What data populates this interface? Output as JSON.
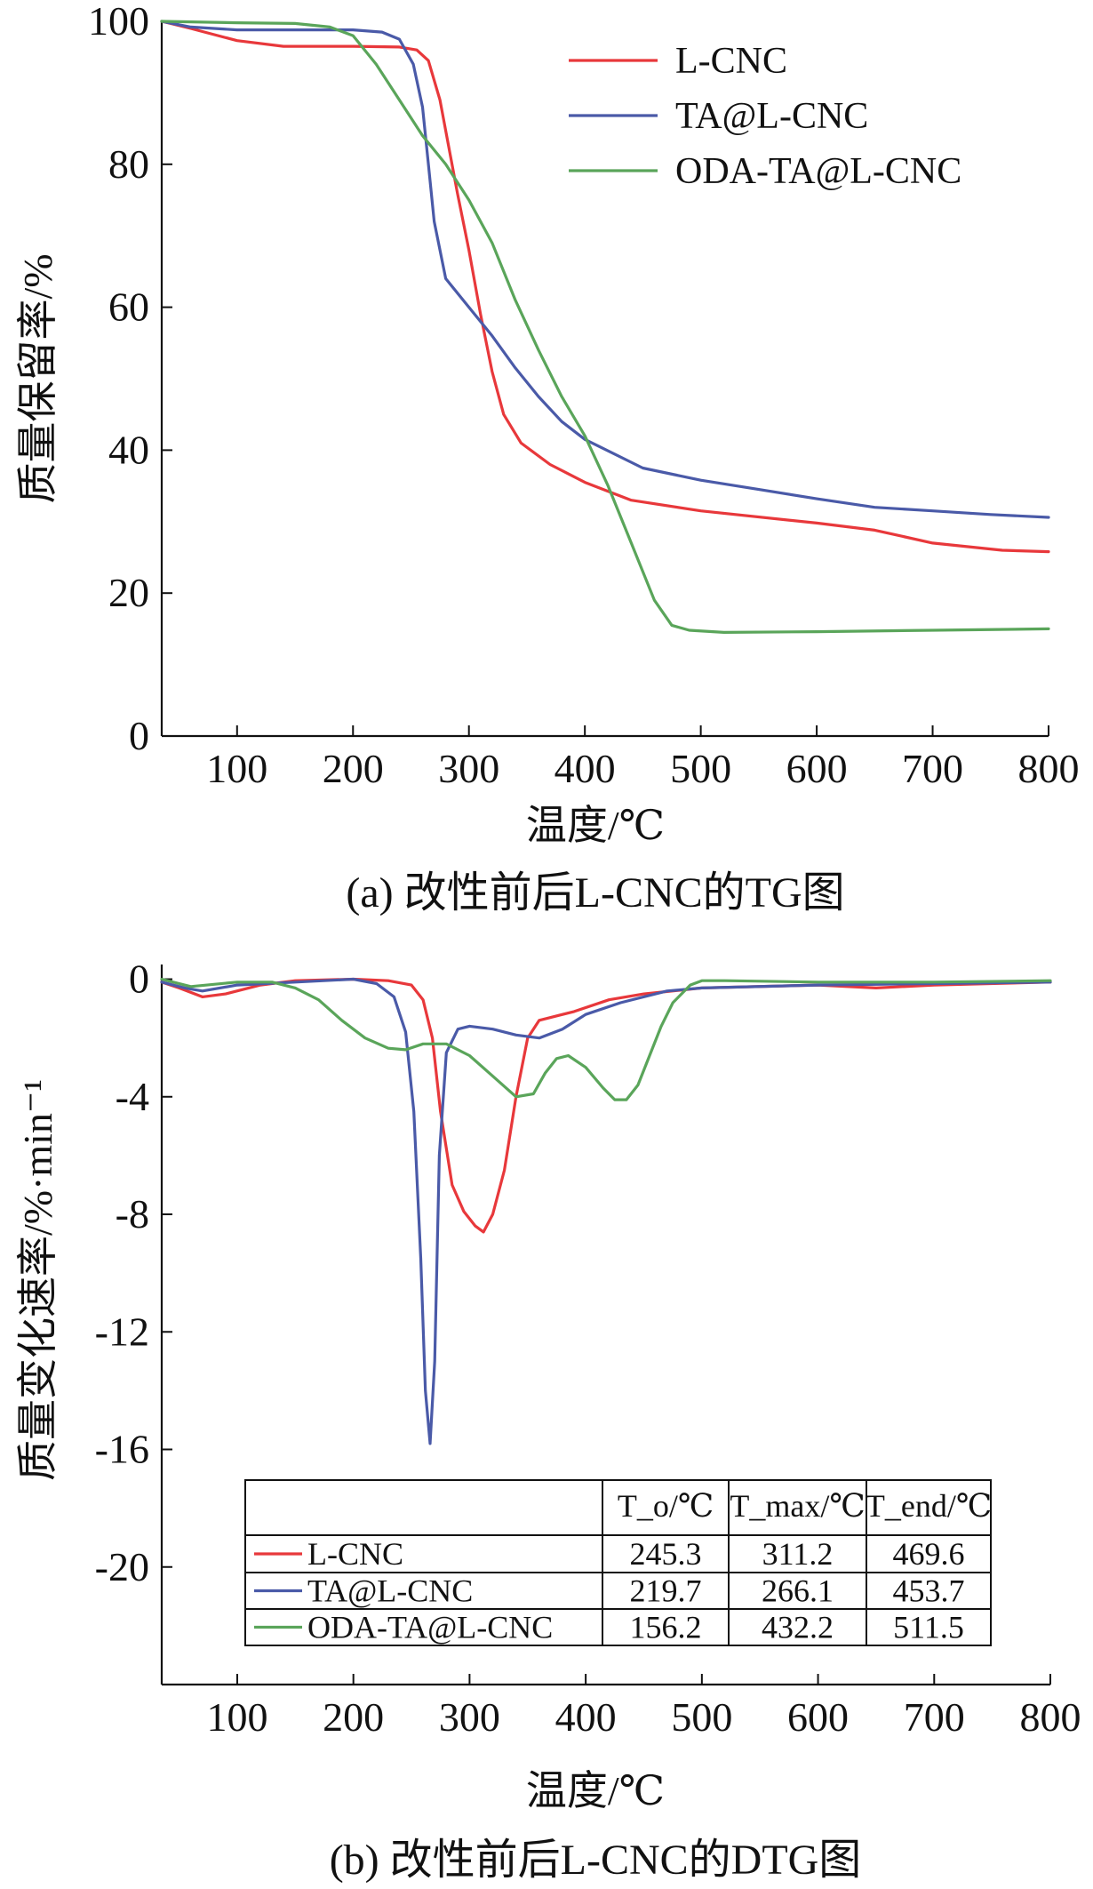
{
  "colors": {
    "L-CNC": "#e8383b",
    "TA@L-CNC": "#4a5aa8",
    "ODA-TA@L-CNC": "#5aa55a"
  },
  "chart_data": [
    {
      "id": "tg",
      "type": "line",
      "caption": "(a) 改性前后L-CNC的TG图",
      "xlabel": "温度/℃",
      "ylabel": "质量保留率/%",
      "xlim": [
        35,
        800
      ],
      "ylim": [
        0,
        100
      ],
      "xticks": [
        100,
        200,
        300,
        400,
        500,
        600,
        700,
        800
      ],
      "yticks": [
        0,
        20,
        40,
        60,
        80,
        100
      ],
      "legend": {
        "placement": "top-right",
        "entries": [
          "L-CNC",
          "TA@L-CNC",
          "ODA-TA@L-CNC"
        ]
      },
      "series": [
        {
          "name": "L-CNC",
          "points": [
            [
              35,
              100
            ],
            [
              60,
              99
            ],
            [
              100,
              97.3
            ],
            [
              140,
              96.5
            ],
            [
              200,
              96.5
            ],
            [
              240,
              96.4
            ],
            [
              255,
              96
            ],
            [
              265,
              94.5
            ],
            [
              275,
              89
            ],
            [
              290,
              76
            ],
            [
              300,
              68
            ],
            [
              310,
              59
            ],
            [
              320,
              51
            ],
            [
              330,
              45
            ],
            [
              345,
              41
            ],
            [
              370,
              38
            ],
            [
              400,
              35.5
            ],
            [
              440,
              33
            ],
            [
              500,
              31.5
            ],
            [
              600,
              29.8
            ],
            [
              650,
              28.8
            ],
            [
              700,
              27
            ],
            [
              760,
              26
            ],
            [
              800,
              25.8
            ]
          ]
        },
        {
          "name": "TA@L-CNC",
          "points": [
            [
              35,
              100
            ],
            [
              60,
              99.2
            ],
            [
              100,
              98.8
            ],
            [
              200,
              98.8
            ],
            [
              225,
              98.5
            ],
            [
              240,
              97.5
            ],
            [
              252,
              94
            ],
            [
              260,
              88
            ],
            [
              265,
              80
            ],
            [
              270,
              72
            ],
            [
              280,
              64
            ],
            [
              300,
              60
            ],
            [
              320,
              56
            ],
            [
              340,
              51.5
            ],
            [
              360,
              47.5
            ],
            [
              380,
              44
            ],
            [
              400,
              41.5
            ],
            [
              450,
              37.5
            ],
            [
              500,
              35.8
            ],
            [
              550,
              34.5
            ],
            [
              600,
              33.2
            ],
            [
              650,
              32
            ],
            [
              700,
              31.5
            ],
            [
              750,
              31
            ],
            [
              800,
              30.6
            ]
          ]
        },
        {
          "name": "ODA-TA@L-CNC",
          "points": [
            [
              35,
              100
            ],
            [
              100,
              99.8
            ],
            [
              150,
              99.7
            ],
            [
              180,
              99.2
            ],
            [
              200,
              98
            ],
            [
              220,
              94
            ],
            [
              240,
              89
            ],
            [
              260,
              84
            ],
            [
              280,
              80
            ],
            [
              300,
              75
            ],
            [
              320,
              69
            ],
            [
              340,
              61
            ],
            [
              360,
              54
            ],
            [
              380,
              47.5
            ],
            [
              400,
              42
            ],
            [
              420,
              35
            ],
            [
              440,
              27
            ],
            [
              460,
              19
            ],
            [
              475,
              15.5
            ],
            [
              490,
              14.8
            ],
            [
              520,
              14.5
            ],
            [
              600,
              14.6
            ],
            [
              700,
              14.8
            ],
            [
              800,
              15
            ]
          ]
        }
      ]
    },
    {
      "id": "dtg",
      "type": "line",
      "caption": "(b) 改性前后L-CNC的DTG图",
      "xlabel": "温度/℃",
      "ylabel": "质量变化速率/%·min⁻¹",
      "xlim": [
        35,
        800
      ],
      "ylim": [
        -24,
        0.5
      ],
      "xticks": [
        100,
        200,
        300,
        400,
        500,
        600,
        700,
        800
      ],
      "yticks": [
        0,
        -4,
        -8,
        -12,
        -16,
        -20
      ],
      "yticklabels": [
        "0",
        "-4",
        "-8",
        "-12",
        "-16",
        "-20"
      ],
      "series": [
        {
          "name": "L-CNC",
          "points": [
            [
              35,
              -0.1
            ],
            [
              50,
              -0.3
            ],
            [
              70,
              -0.6
            ],
            [
              90,
              -0.5
            ],
            [
              120,
              -0.2
            ],
            [
              150,
              -0.05
            ],
            [
              200,
              0
            ],
            [
              230,
              -0.05
            ],
            [
              250,
              -0.2
            ],
            [
              260,
              -0.7
            ],
            [
              268,
              -2
            ],
            [
              275,
              -4.5
            ],
            [
              285,
              -7
            ],
            [
              295,
              -7.9
            ],
            [
              305,
              -8.4
            ],
            [
              312,
              -8.6
            ],
            [
              320,
              -8
            ],
            [
              330,
              -6.5
            ],
            [
              340,
              -4
            ],
            [
              350,
              -2
            ],
            [
              360,
              -1.4
            ],
            [
              390,
              -1.1
            ],
            [
              420,
              -0.7
            ],
            [
              450,
              -0.5
            ],
            [
              500,
              -0.3
            ],
            [
              600,
              -0.2
            ],
            [
              650,
              -0.3
            ],
            [
              700,
              -0.2
            ],
            [
              800,
              -0.1
            ]
          ]
        },
        {
          "name": "TA@L-CNC",
          "points": [
            [
              35,
              -0.1
            ],
            [
              55,
              -0.3
            ],
            [
              70,
              -0.4
            ],
            [
              100,
              -0.2
            ],
            [
              150,
              -0.1
            ],
            [
              200,
              0
            ],
            [
              220,
              -0.15
            ],
            [
              235,
              -0.6
            ],
            [
              245,
              -1.8
            ],
            [
              252,
              -4.5
            ],
            [
              258,
              -9.5
            ],
            [
              262,
              -14
            ],
            [
              266,
              -15.8
            ],
            [
              270,
              -13
            ],
            [
              274,
              -6
            ],
            [
              280,
              -2.5
            ],
            [
              290,
              -1.7
            ],
            [
              300,
              -1.6
            ],
            [
              320,
              -1.7
            ],
            [
              340,
              -1.9
            ],
            [
              360,
              -2
            ],
            [
              380,
              -1.7
            ],
            [
              400,
              -1.2
            ],
            [
              430,
              -0.8
            ],
            [
              470,
              -0.4
            ],
            [
              500,
              -0.3
            ],
            [
              600,
              -0.2
            ],
            [
              700,
              -0.15
            ],
            [
              800,
              -0.1
            ]
          ]
        },
        {
          "name": "ODA-TA@L-CNC",
          "points": [
            [
              35,
              0
            ],
            [
              60,
              -0.25
            ],
            [
              100,
              -0.1
            ],
            [
              130,
              -0.1
            ],
            [
              150,
              -0.3
            ],
            [
              170,
              -0.7
            ],
            [
              190,
              -1.4
            ],
            [
              210,
              -2
            ],
            [
              230,
              -2.35
            ],
            [
              245,
              -2.4
            ],
            [
              260,
              -2.2
            ],
            [
              280,
              -2.2
            ],
            [
              300,
              -2.6
            ],
            [
              320,
              -3.3
            ],
            [
              340,
              -4
            ],
            [
              355,
              -3.9
            ],
            [
              365,
              -3.2
            ],
            [
              375,
              -2.7
            ],
            [
              385,
              -2.6
            ],
            [
              400,
              -3
            ],
            [
              415,
              -3.7
            ],
            [
              425,
              -4.1
            ],
            [
              435,
              -4.1
            ],
            [
              445,
              -3.6
            ],
            [
              455,
              -2.6
            ],
            [
              465,
              -1.6
            ],
            [
              475,
              -0.8
            ],
            [
              490,
              -0.2
            ],
            [
              500,
              -0.05
            ],
            [
              520,
              -0.05
            ],
            [
              600,
              -0.1
            ],
            [
              700,
              -0.1
            ],
            [
              800,
              -0.05
            ]
          ]
        }
      ],
      "table": {
        "headers": [
          "T_o/℃",
          "T_max/℃",
          "T_end/℃"
        ],
        "rows": [
          {
            "name": "L-CNC",
            "values": [
              "245.3",
              "311.2",
              "469.6"
            ]
          },
          {
            "name": "TA@L-CNC",
            "values": [
              "219.7",
              "266.1",
              "453.7"
            ]
          },
          {
            "name": "ODA-TA@L-CNC",
            "values": [
              "156.2",
              "432.2",
              "511.5"
            ]
          }
        ]
      }
    }
  ]
}
